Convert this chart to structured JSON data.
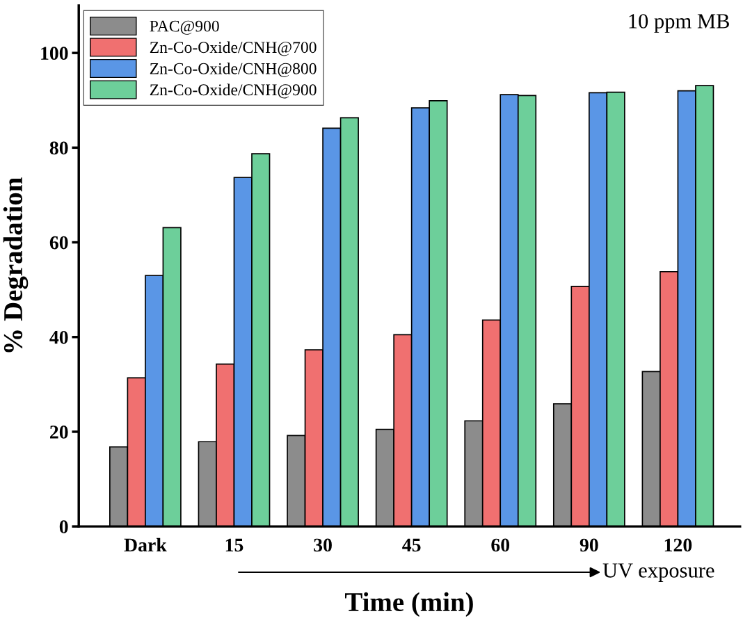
{
  "chart_data": {
    "type": "bar",
    "xlabel": "Time (min)",
    "ylabel": "% Degradation",
    "categories": [
      "Dark",
      "15",
      "30",
      "45",
      "60",
      "90",
      "120"
    ],
    "series": [
      {
        "name": "PAC@900",
        "color": "#8c8c8c",
        "values": [
          16.8,
          17.9,
          19.2,
          20.5,
          22.3,
          25.9,
          32.7
        ]
      },
      {
        "name": "Zn-Co-Oxide/CNH@700",
        "color": "#f07070",
        "values": [
          31.4,
          34.3,
          37.3,
          40.5,
          43.6,
          50.7,
          53.8
        ]
      },
      {
        "name": "Zn-Co-Oxide/CNH@800",
        "color": "#5a96e6",
        "values": [
          53.0,
          73.7,
          84.1,
          88.4,
          91.2,
          91.6,
          92.0
        ]
      },
      {
        "name": "Zn-Co-Oxide/CNH@900",
        "color": "#6dcf9a",
        "values": [
          63.1,
          78.7,
          86.3,
          89.9,
          91.0,
          91.7,
          93.1
        ]
      }
    ],
    "ylim": [
      0,
      110
    ],
    "yticks": [
      0,
      20,
      40,
      60,
      80,
      100
    ],
    "grid": false,
    "legend": "top left",
    "annotations": [
      "10 ppm MB",
      "UV exposure"
    ]
  }
}
